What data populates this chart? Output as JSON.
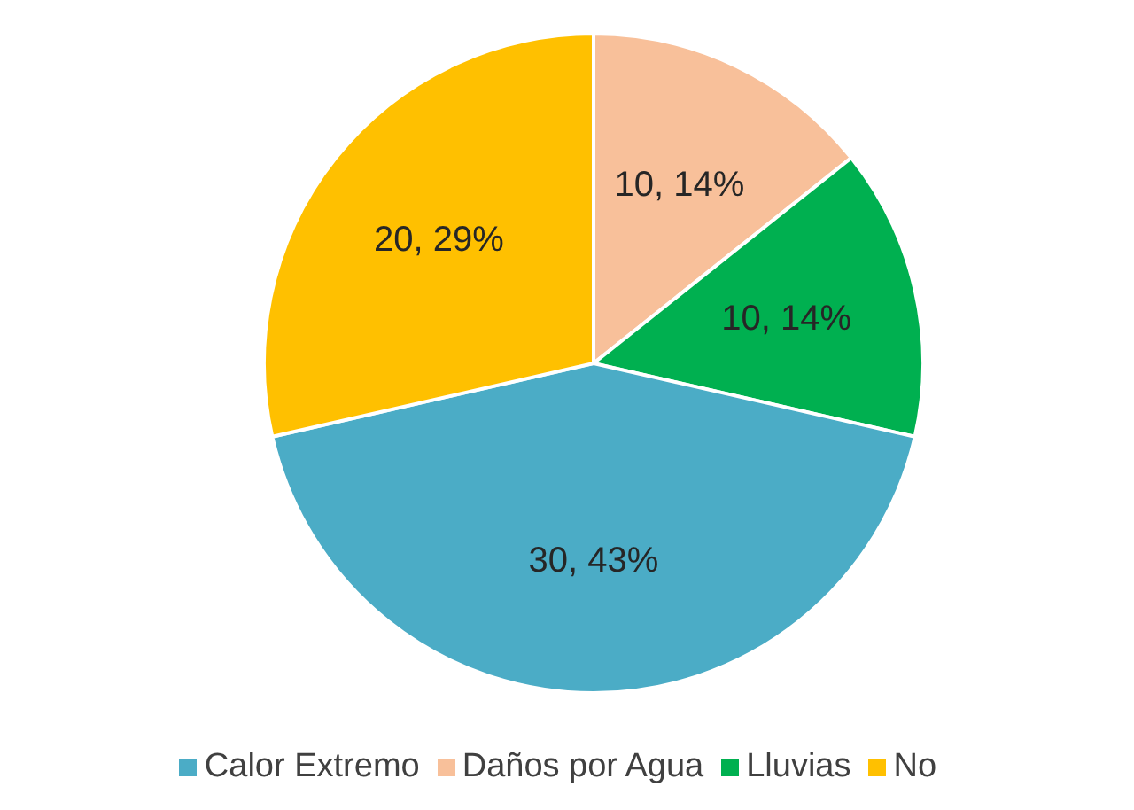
{
  "chart_data": {
    "type": "pie",
    "categories": [
      "Daños por Agua",
      "Lluvias",
      "Calor Extremo",
      "No"
    ],
    "values": [
      10,
      10,
      30,
      20
    ],
    "colors": [
      "#f8c09a",
      "#00b050",
      "#4bacc6",
      "#ffc000"
    ],
    "value_labels": [
      "10, 14%",
      "10, 14%",
      "30, 43%",
      "20, 29%"
    ],
    "legend": "bottom"
  }
}
